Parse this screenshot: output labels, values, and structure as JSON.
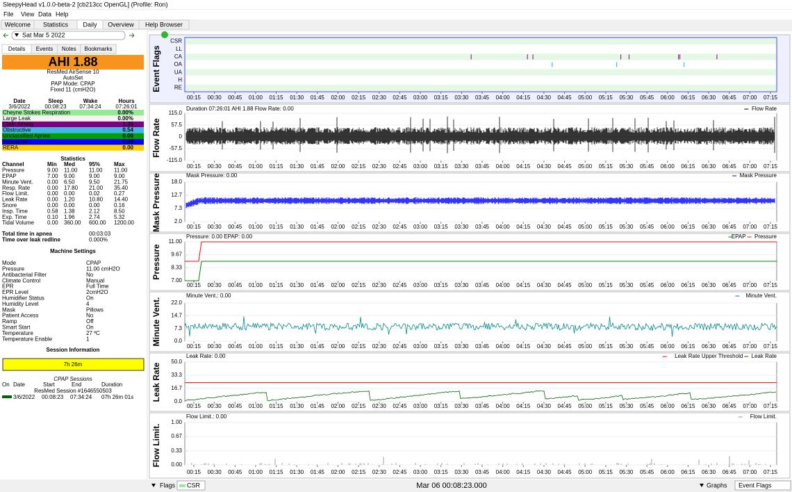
{
  "window": {
    "title": "SleepyHead v1.0.0-beta-2 [cb213cc OpenGL] (Profile: Ron)"
  },
  "menu": [
    "File",
    "View",
    "Data",
    "Help"
  ],
  "tabs": [
    "Welcome",
    "Statistics",
    "Daily",
    "Overview",
    "Help Browser"
  ],
  "date_nav": {
    "date": "Sat Mar 5 2022"
  },
  "subtabs": [
    "Details",
    "Events",
    "Notes",
    "Bookmarks"
  ],
  "ahi": "AHI 1.88",
  "machine": [
    "ResMed AirSense 10",
    "AutoSet",
    "PAP Mode: CPAP",
    "Fixed 11 (cmH2O)"
  ],
  "summary": {
    "header": [
      "Date",
      "Sleep",
      "Wake",
      "Hours"
    ],
    "row": [
      "3/6/2022",
      "00:08:23",
      "07:34:24",
      "07:26:01"
    ]
  },
  "indices": [
    {
      "label": "Cheyne Stokes Respiration",
      "value": "0.00%",
      "color": "#98e898"
    },
    {
      "label": "Large Leak",
      "value": "0.00%",
      "color": "#f4f4f4"
    },
    {
      "label": "Clear Airway",
      "value": "1.35",
      "color": "#800080"
    },
    {
      "label": "Obstructive",
      "value": "0.54",
      "color": "#40b8e8"
    },
    {
      "label": "Unclassified Apnea",
      "value": "0.00",
      "color": "#00a000"
    },
    {
      "label": "Hypopnea",
      "value": "0.00",
      "color": "#0000ff"
    },
    {
      "label": "RERA",
      "value": "0.00",
      "color": "#ffd000"
    }
  ],
  "statistics": {
    "title": "Statistics",
    "header": [
      "Channel",
      "Min",
      "Med",
      "95%",
      "Max"
    ],
    "rows": [
      [
        "Pressure",
        "9.00",
        "11.00",
        "11.00",
        "11.00"
      ],
      [
        "EPAP",
        "7.00",
        "9.00",
        "9.00",
        "9.00"
      ],
      [
        "Minute Vent.",
        "0.00",
        "6.50",
        "9.50",
        "21.75"
      ],
      [
        "Resp. Rate",
        "0.00",
        "17.80",
        "21.00",
        "35.40"
      ],
      [
        "Flow Limit.",
        "0.00",
        "0.00",
        "0.02",
        "0.27"
      ],
      [
        "Leak Rate",
        "0.00",
        "1.20",
        "10.80",
        "14.40"
      ],
      [
        "Snore",
        "0.00",
        "0.00",
        "0.00",
        "0.16"
      ],
      [
        "Insp. Time",
        "0.58",
        "1.38",
        "2.12",
        "8.50"
      ],
      [
        "Exp. Time",
        "0.10",
        "1.96",
        "2.74",
        "5.32"
      ],
      [
        "Tidal Volume",
        "0.00",
        "360.00",
        "600.00",
        "1200.00"
      ]
    ]
  },
  "apnea": [
    [
      "Total time in apnea",
      "00:03:03"
    ],
    [
      "Time over leak redline",
      "0.000%"
    ]
  ],
  "settings": {
    "title": "Machine Settings",
    "rows": [
      [
        "Mode",
        "CPAP"
      ],
      [
        "Pressure",
        "11.00 cmH2O"
      ],
      [
        "Antibacterial Filter",
        "No"
      ],
      [
        "Climate Control",
        "Manual"
      ],
      [
        "EPR",
        "Full Time"
      ],
      [
        "EPR Level",
        "2cmH2O"
      ],
      [
        "Humidifier Status",
        "On"
      ],
      [
        "Humidity Level",
        "4"
      ],
      [
        "Mask",
        "Pillows"
      ],
      [
        "Patient Access",
        "No"
      ],
      [
        "Ramp",
        "Off"
      ],
      [
        "Smart Start",
        "On"
      ],
      [
        "Temperature",
        "27 ºC"
      ],
      [
        "Temperature Enable",
        "1"
      ]
    ]
  },
  "session": {
    "title": "Session Information",
    "bar": "7h 26m",
    "subtitle": "CPAP Sessions",
    "header": [
      "On",
      "Date",
      "Start",
      "End",
      "Duration"
    ],
    "name": "ResMed Session #1646550503",
    "row": [
      "3/6/2022",
      "00:08:23",
      "07:34:24",
      "07h 26m 01s"
    ]
  },
  "xticks": [
    "00:15",
    "00:30",
    "00:45",
    "01:00",
    "01:15",
    "01:30",
    "01:45",
    "02:00",
    "02:15",
    "02:30",
    "02:45",
    "03:00",
    "03:15",
    "03:30",
    "03:45",
    "04:00",
    "04:15",
    "04:30",
    "04:45",
    "05:00",
    "05:15",
    "05:30",
    "05:45",
    "06:00",
    "06:15",
    "06:30",
    "06:45",
    "07:00",
    "07:15"
  ],
  "graphs": [
    {
      "title": "Event Flags",
      "flags": [
        "CSR",
        "LL",
        "CA",
        "OA",
        "UA",
        "H",
        "RE"
      ],
      "events": [
        {
          "flag": "CA",
          "color": "#a020a0",
          "times": [
            "03:37",
            "04:18",
            "04:22",
            "05:26",
            "05:32",
            "06:08",
            "06:09",
            "06:36"
          ]
        },
        {
          "flag": "OA",
          "color": "#40b8e8",
          "times": [
            "04:36",
            "05:23",
            "06:12"
          ]
        }
      ]
    },
    {
      "title": "Flow Rate",
      "info": "Duration 07:26:01 AHI 1.88 Flow Rate: 0.00",
      "legend": [
        {
          "name": "Flow Rate",
          "color": "#000000"
        }
      ],
      "ylim": [
        -115,
        115
      ],
      "yticks": [
        {
          "value": 115,
          "label": "115.0"
        },
        {
          "value": 57.5,
          "label": "57.5"
        },
        0,
        {
          "value": -57.5,
          "label": "-57.5"
        },
        {
          "value": -115,
          "label": "-115.0"
        }
      ]
    },
    {
      "title": "Mask Pressure",
      "info": "Mask Pressure: 0.00",
      "legend": [
        {
          "name": "Mask Pressure",
          "color": "#0000ff"
        }
      ],
      "ylim": [
        2,
        18
      ],
      "yticks": [
        {
          "value": 18,
          "label": "18.0"
        },
        12.7,
        7.3,
        {
          "value": 2,
          "label": "2.0"
        }
      ]
    },
    {
      "title": "Pressure",
      "info": "Pressure: 0.00 EPAP: 0.00",
      "legend": [
        {
          "name": "EPAP",
          "color": "#008000",
          "values": [
            7,
            9
          ]
        },
        {
          "name": "Pressure",
          "color": "#ff0000",
          "values": [
            9,
            11
          ]
        }
      ],
      "ylim": [
        7,
        11
      ],
      "yticks": [
        {
          "value": 11,
          "label": "11.00"
        },
        9.67,
        8.33,
        {
          "value": 7,
          "label": "7.00"
        }
      ]
    },
    {
      "title": "Minute Vent.",
      "info": "Minute Vent.: 0.00",
      "legend": [
        {
          "name": "Minute Vent.",
          "color": "#008b8b"
        }
      ],
      "ylim": [
        0,
        22
      ],
      "yticks": [
        {
          "value": 22,
          "label": "22.0"
        },
        14.7,
        7.3,
        {
          "value": 0,
          "label": "0.0"
        }
      ]
    },
    {
      "title": "Leak Rate",
      "info": "Leak Rate: 0.00",
      "legend": [
        {
          "name": "Leak Rate Upper Threshold",
          "color": "#ff0000",
          "value": 24
        },
        {
          "name": "Leak Rate",
          "color": "#006400"
        }
      ],
      "ylim": [
        0,
        50
      ],
      "yticks": [
        {
          "value": 50,
          "label": "50.0"
        },
        33.3,
        16.7,
        {
          "value": 0,
          "label": "0.0"
        }
      ]
    },
    {
      "title": "Flow Limit.",
      "info": "Flow Limit.: 0.00",
      "legend": [
        {
          "name": "Flow Limit.",
          "color": "#909090"
        }
      ],
      "ylim": [
        0,
        1
      ],
      "yticks": [
        {
          "value": 1,
          "label": "1.00"
        },
        0.67,
        0.33,
        {
          "value": 0,
          "label": "0.00"
        }
      ]
    }
  ],
  "bottom": {
    "flags": "Flags",
    "csr": "CSR",
    "time": "Mar 06 00:08:23.000",
    "graphs": "Graphs",
    "event_flags": "Event Flags"
  }
}
